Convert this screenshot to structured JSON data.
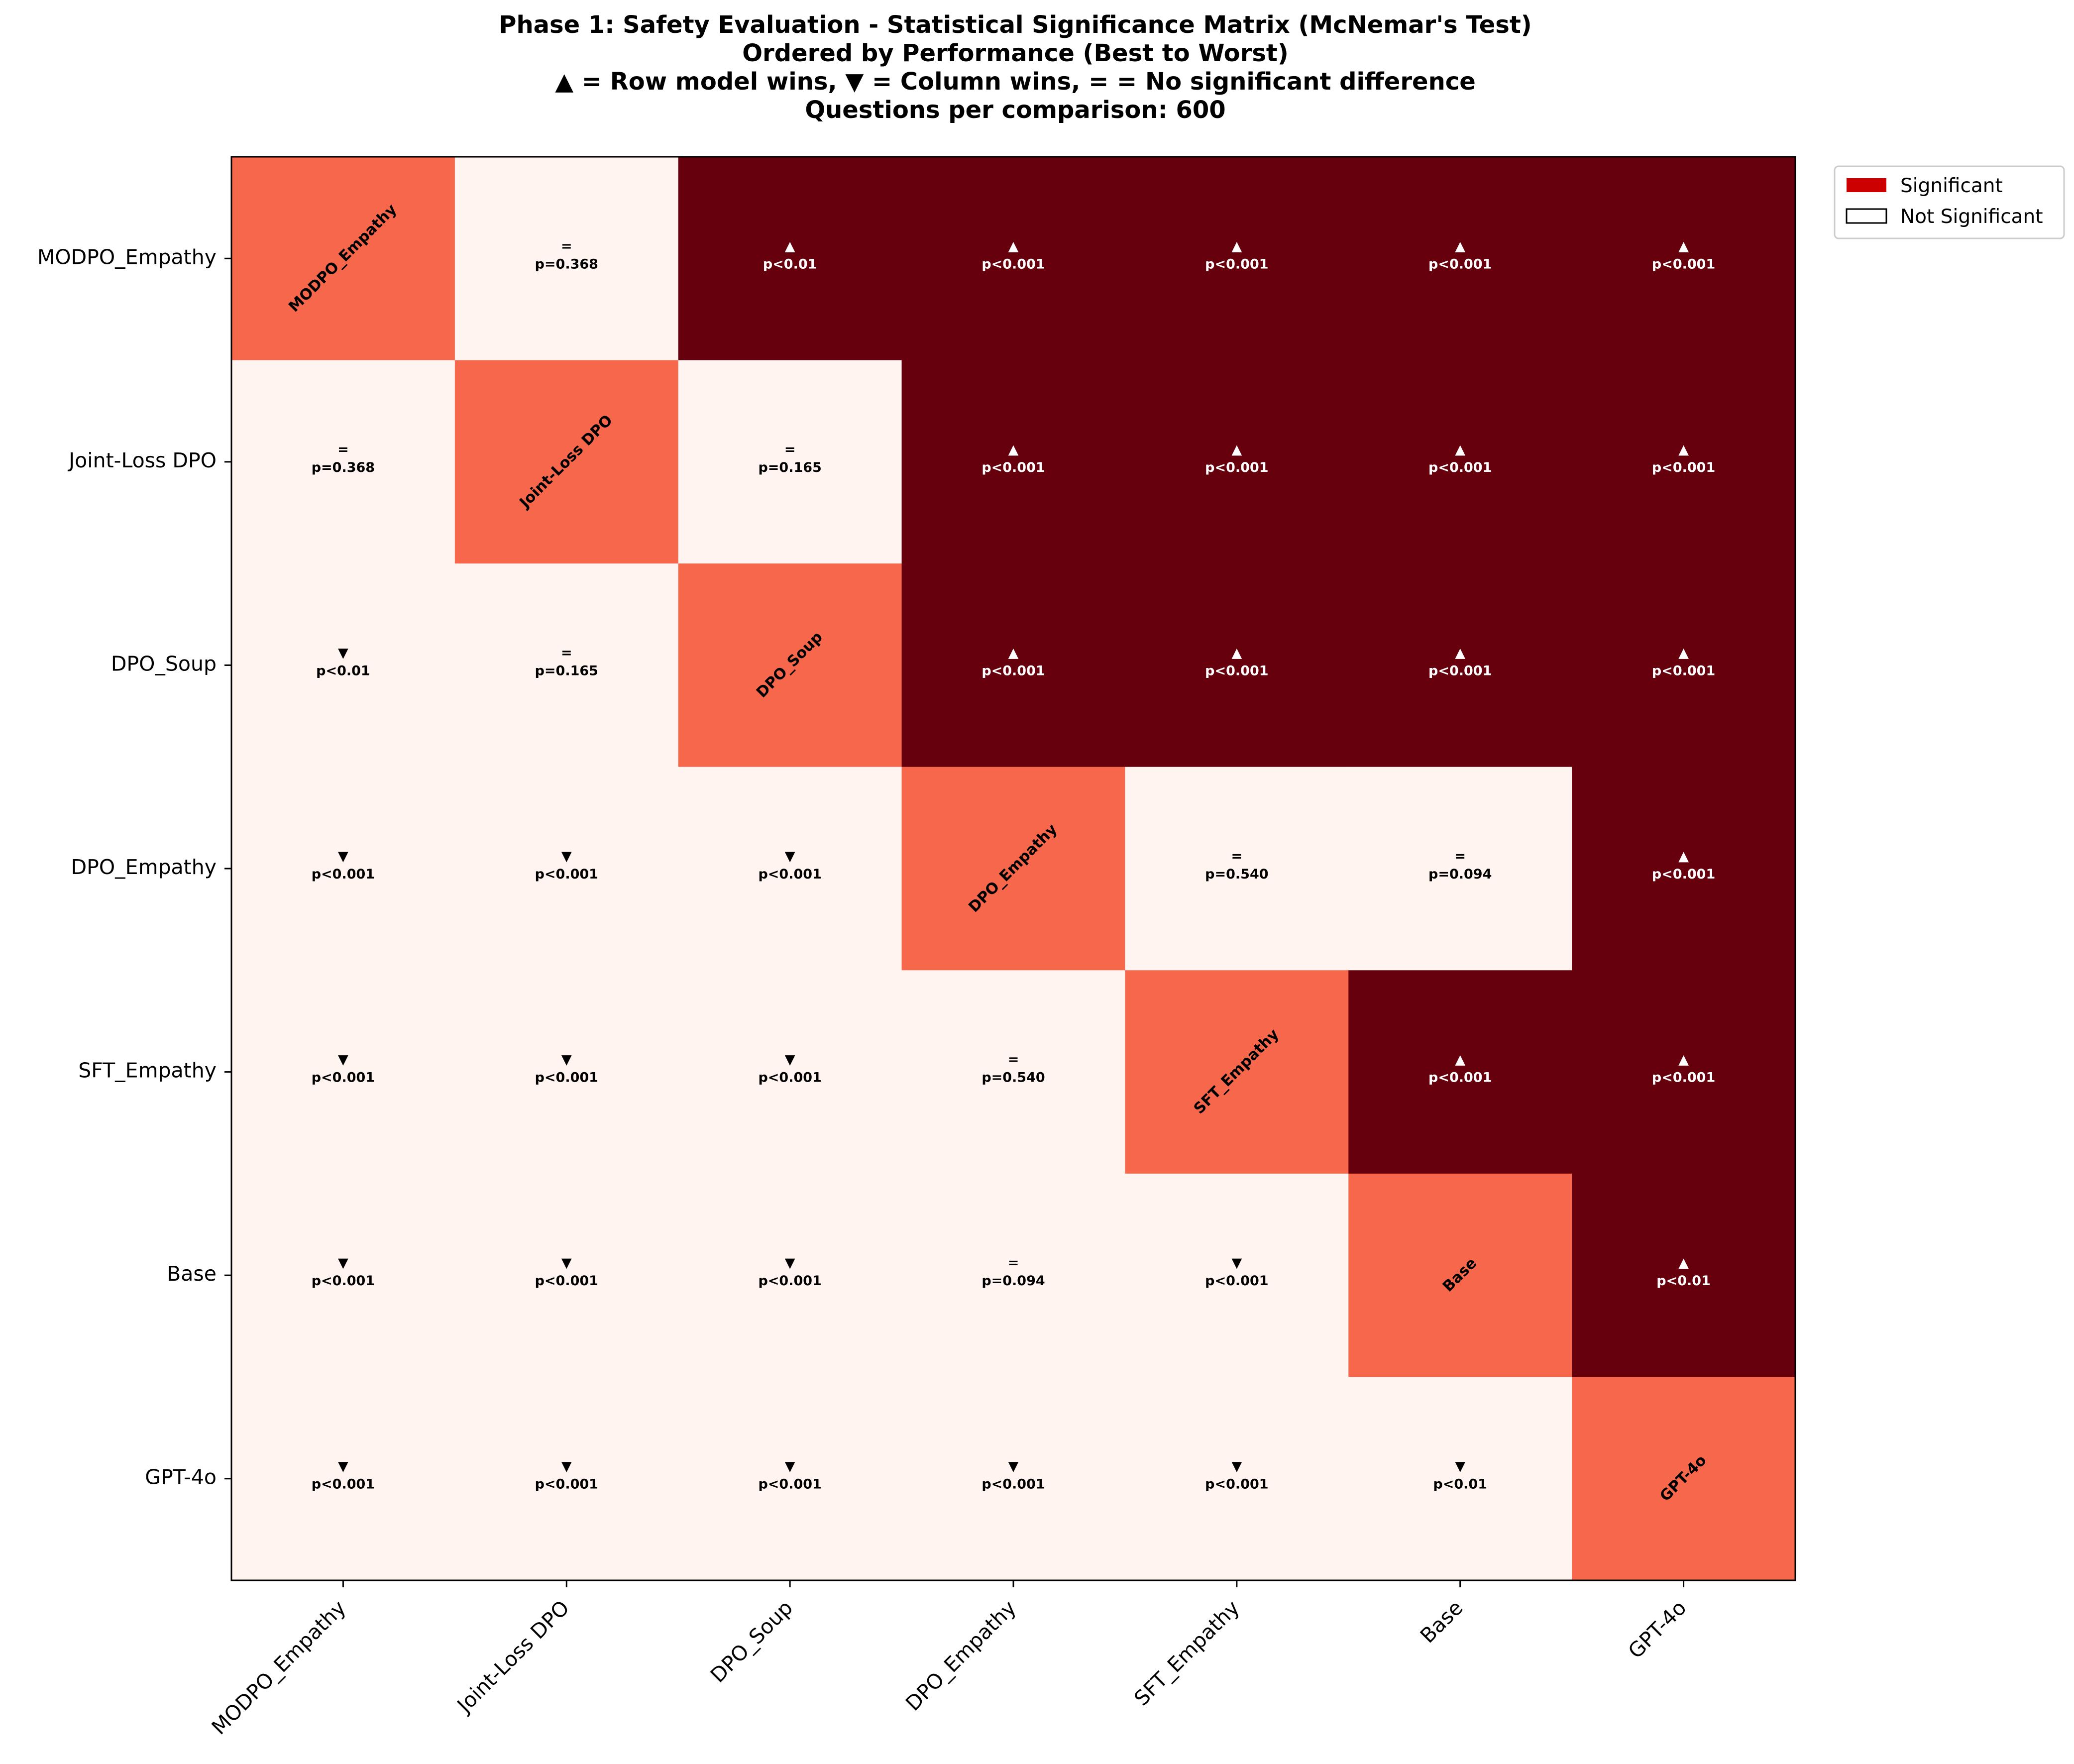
{
  "chart_data": {
    "type": "heatmap",
    "title_lines": [
      "Phase 1: Safety Evaluation - Statistical Significance Matrix (McNemar's Test)",
      "Ordered by Performance (Best to Worst)",
      "▲ = Row model wins, ▼ = Column wins, = = No significant difference",
      "Questions per comparison: 600"
    ],
    "models": [
      "MODPO_Empathy",
      "Joint-Loss DPO",
      "DPO_Soup",
      "DPO_Empathy",
      "SFT_Empathy",
      "Base",
      "GPT-4o"
    ],
    "cells": [
      [
        null,
        {
          "sym": "=",
          "p": "p=0.368",
          "sig": false
        },
        {
          "sym": "▲",
          "p": "p<0.01",
          "sig": true
        },
        {
          "sym": "▲",
          "p": "p<0.001",
          "sig": true
        },
        {
          "sym": "▲",
          "p": "p<0.001",
          "sig": true
        },
        {
          "sym": "▲",
          "p": "p<0.001",
          "sig": true
        },
        {
          "sym": "▲",
          "p": "p<0.001",
          "sig": true
        }
      ],
      [
        {
          "sym": "=",
          "p": "p=0.368",
          "sig": false
        },
        null,
        {
          "sym": "=",
          "p": "p=0.165",
          "sig": false
        },
        {
          "sym": "▲",
          "p": "p<0.001",
          "sig": true
        },
        {
          "sym": "▲",
          "p": "p<0.001",
          "sig": true
        },
        {
          "sym": "▲",
          "p": "p<0.001",
          "sig": true
        },
        {
          "sym": "▲",
          "p": "p<0.001",
          "sig": true
        }
      ],
      [
        {
          "sym": "▼",
          "p": "p<0.01",
          "sig": false
        },
        {
          "sym": "=",
          "p": "p=0.165",
          "sig": false
        },
        null,
        {
          "sym": "▲",
          "p": "p<0.001",
          "sig": true
        },
        {
          "sym": "▲",
          "p": "p<0.001",
          "sig": true
        },
        {
          "sym": "▲",
          "p": "p<0.001",
          "sig": true
        },
        {
          "sym": "▲",
          "p": "p<0.001",
          "sig": true
        }
      ],
      [
        {
          "sym": "▼",
          "p": "p<0.001",
          "sig": false
        },
        {
          "sym": "▼",
          "p": "p<0.001",
          "sig": false
        },
        {
          "sym": "▼",
          "p": "p<0.001",
          "sig": false
        },
        null,
        {
          "sym": "=",
          "p": "p=0.540",
          "sig": false
        },
        {
          "sym": "=",
          "p": "p=0.094",
          "sig": false
        },
        {
          "sym": "▲",
          "p": "p<0.001",
          "sig": true
        }
      ],
      [
        {
          "sym": "▼",
          "p": "p<0.001",
          "sig": false
        },
        {
          "sym": "▼",
          "p": "p<0.001",
          "sig": false
        },
        {
          "sym": "▼",
          "p": "p<0.001",
          "sig": false
        },
        {
          "sym": "=",
          "p": "p=0.540",
          "sig": false
        },
        null,
        {
          "sym": "▲",
          "p": "p<0.001",
          "sig": true
        },
        {
          "sym": "▲",
          "p": "p<0.001",
          "sig": true
        }
      ],
      [
        {
          "sym": "▼",
          "p": "p<0.001",
          "sig": false
        },
        {
          "sym": "▼",
          "p": "p<0.001",
          "sig": false
        },
        {
          "sym": "▼",
          "p": "p<0.001",
          "sig": false
        },
        {
          "sym": "=",
          "p": "p=0.094",
          "sig": false
        },
        {
          "sym": "▼",
          "p": "p<0.001",
          "sig": false
        },
        null,
        {
          "sym": "▲",
          "p": "p<0.01",
          "sig": true
        }
      ],
      [
        {
          "sym": "▼",
          "p": "p<0.001",
          "sig": false
        },
        {
          "sym": "▼",
          "p": "p<0.001",
          "sig": false
        },
        {
          "sym": "▼",
          "p": "p<0.001",
          "sig": false
        },
        {
          "sym": "▼",
          "p": "p<0.001",
          "sig": false
        },
        {
          "sym": "▼",
          "p": "p<0.001",
          "sig": false
        },
        {
          "sym": "▼",
          "p": "p<0.01",
          "sig": false
        },
        null
      ]
    ],
    "colors": {
      "significant": "#67000d",
      "not_significant": "#fff4ef",
      "diagonal": "#f6674c",
      "legend_significant": "#cc0000"
    },
    "legend": {
      "position": "top-right-outside",
      "items": [
        {
          "label": "Significant",
          "color": "#cc0000"
        },
        {
          "label": "Not Significant",
          "color": "#ffffff"
        }
      ]
    }
  }
}
